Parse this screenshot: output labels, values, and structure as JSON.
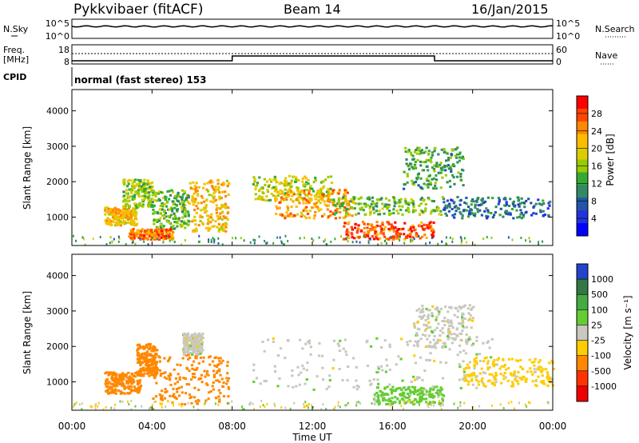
{
  "header": {
    "station": "Pykkvibaer (fitACF)",
    "beam": "Beam 14",
    "date": "16/Jan/2015"
  },
  "strip": {
    "nsky_label": "N.Sky",
    "nsearch_label": "N.Search",
    "nsky_ticks": [
      "10^5",
      "10^0"
    ],
    "nsearch_ticks": [
      "10^5",
      "10^0"
    ],
    "freq_label_1": "Freq.",
    "freq_label_2": "[MHz]",
    "freq_ticks": [
      "18",
      "8"
    ],
    "nave_label": "Nave",
    "nave_ticks": [
      "60",
      "0"
    ],
    "cpid_label": "CPID",
    "cpid_text": "normal (fast stereo) 153"
  },
  "power_panel": {
    "ylabel": "Slant Range [km]",
    "yticks": [
      "4000",
      "3000",
      "2000",
      "1000"
    ],
    "cbar_label": "Power [dB]",
    "cbar_ticks": [
      "28",
      "24",
      "20",
      "16",
      "12",
      "8",
      "4"
    ],
    "cbar_colors": [
      "#ff0000",
      "#ff4400",
      "#ff8800",
      "#ffbb00",
      "#ddcc00",
      "#99cc00",
      "#33aa33",
      "#338866",
      "#2255aa",
      "#2233dd",
      "#0000ff"
    ]
  },
  "velocity_panel": {
    "ylabel": "Slant Range [km]",
    "yticks": [
      "4000",
      "3000",
      "2000",
      "1000"
    ],
    "cbar_label": "Velocity [m s⁻¹]",
    "cbar_ticks": [
      "1000",
      "500",
      "100",
      "25",
      "-25",
      "-100",
      "-500",
      "-1000"
    ],
    "cbar_colors": [
      "#2244cc",
      "#337744",
      "#44aa44",
      "#66cc33",
      "#c8c8c0",
      "#ffcc00",
      "#ff8800",
      "#ff3300",
      "#ee0000"
    ]
  },
  "xaxis": {
    "label": "Time UT",
    "ticks": [
      "00:00",
      "04:00",
      "08:00",
      "12:00",
      "16:00",
      "20:00",
      "00:00"
    ]
  },
  "chart_data": [
    {
      "type": "heatmap",
      "title": "Beam 14",
      "xlabel": "Time UT",
      "ylabel": "Slant Range [km]",
      "xlim": [
        0,
        24
      ],
      "ylim": [
        200,
        4600
      ],
      "colorbar": "Power [dB]",
      "colorbar_range": [
        0,
        32
      ],
      "blobs": [
        {
          "t": [
            1.6,
            3.2
          ],
          "r": [
            800,
            1300
          ],
          "v": 22
        },
        {
          "t": [
            2.5,
            4.0
          ],
          "r": [
            1300,
            2100
          ],
          "v": 16
        },
        {
          "t": [
            4.0,
            5.8
          ],
          "r": [
            700,
            1800
          ],
          "v": 14
        },
        {
          "t": [
            5.8,
            7.8
          ],
          "r": [
            600,
            2100
          ],
          "v": 22
        },
        {
          "t": [
            2.8,
            5.0
          ],
          "r": [
            400,
            700
          ],
          "v": 26
        },
        {
          "t": [
            9.0,
            13.0
          ],
          "r": [
            1500,
            2200
          ],
          "v": 18
        },
        {
          "t": [
            10.0,
            14.0
          ],
          "r": [
            1000,
            1800
          ],
          "v": 24
        },
        {
          "t": [
            13.0,
            18.5
          ],
          "r": [
            1100,
            1600
          ],
          "v": 14
        },
        {
          "t": [
            13.5,
            18.0
          ],
          "r": [
            400,
            900
          ],
          "v": 28
        },
        {
          "t": [
            16.5,
            19.5
          ],
          "r": [
            1800,
            3000
          ],
          "v": 12
        },
        {
          "t": [
            18.5,
            23.8
          ],
          "r": [
            1000,
            1600
          ],
          "v": 8
        }
      ]
    },
    {
      "type": "heatmap",
      "xlabel": "Time UT",
      "ylabel": "Slant Range [km]",
      "xlim": [
        0,
        24
      ],
      "ylim": [
        200,
        4600
      ],
      "colorbar": "Velocity [m s⁻¹]",
      "blobs": [
        {
          "t": [
            1.6,
            3.4
          ],
          "r": [
            700,
            1300
          ],
          "v": -200
        },
        {
          "t": [
            3.2,
            4.2
          ],
          "r": [
            1200,
            2100
          ],
          "v": -150
        },
        {
          "t": [
            4.0,
            7.8
          ],
          "r": [
            400,
            1800
          ],
          "v": -300
        },
        {
          "t": [
            5.5,
            6.5
          ],
          "r": [
            1800,
            2400
          ],
          "v": 0
        },
        {
          "t": [
            9.0,
            21.0
          ],
          "r": [
            800,
            2300
          ],
          "v": 0
        },
        {
          "t": [
            15.0,
            18.5
          ],
          "r": [
            400,
            900
          ],
          "v": 50
        },
        {
          "t": [
            17.0,
            20.0
          ],
          "r": [
            2000,
            3200
          ],
          "v": 0
        },
        {
          "t": [
            19.5,
            24.0
          ],
          "r": [
            900,
            1700
          ],
          "v": -50
        }
      ]
    }
  ]
}
